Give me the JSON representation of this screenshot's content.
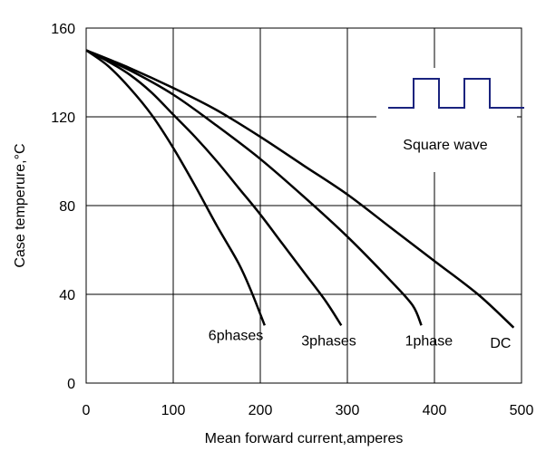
{
  "chart_data": {
    "type": "line",
    "title": "",
    "xlabel": "Mean forward  current,amperes",
    "ylabel": "Case temperure,°C",
    "xlim": [
      0,
      500
    ],
    "ylim": [
      0,
      160
    ],
    "xticks": [
      0,
      100,
      200,
      300,
      400,
      500
    ],
    "yticks": [
      0,
      40,
      80,
      120,
      160
    ],
    "grid": true,
    "series": [
      {
        "name": "6phases",
        "points": [
          [
            0,
            150
          ],
          [
            25,
            143
          ],
          [
            50,
            133
          ],
          [
            75,
            121
          ],
          [
            100,
            106
          ],
          [
            125,
            89
          ],
          [
            150,
            71
          ],
          [
            175,
            54
          ],
          [
            190,
            41
          ],
          [
            205,
            26
          ]
        ]
      },
      {
        "name": "3phases",
        "points": [
          [
            0,
            150
          ],
          [
            25,
            145
          ],
          [
            50,
            139
          ],
          [
            75,
            131
          ],
          [
            100,
            121
          ],
          [
            125,
            111
          ],
          [
            150,
            100
          ],
          [
            175,
            88
          ],
          [
            200,
            76
          ],
          [
            225,
            63
          ],
          [
            250,
            50
          ],
          [
            275,
            37
          ],
          [
            293,
            26
          ]
        ]
      },
      {
        "name": "1phase",
        "points": [
          [
            0,
            150
          ],
          [
            50,
            141
          ],
          [
            100,
            130
          ],
          [
            150,
            116
          ],
          [
            200,
            101
          ],
          [
            250,
            84
          ],
          [
            300,
            66
          ],
          [
            350,
            46
          ],
          [
            375,
            35
          ],
          [
            385,
            26
          ]
        ]
      },
      {
        "name": "DC",
        "points": [
          [
            0,
            150
          ],
          [
            50,
            142
          ],
          [
            100,
            133
          ],
          [
            150,
            123
          ],
          [
            200,
            111
          ],
          [
            250,
            98
          ],
          [
            300,
            85
          ],
          [
            350,
            70
          ],
          [
            400,
            55
          ],
          [
            450,
            40
          ],
          [
            491,
            25
          ]
        ]
      }
    ],
    "inset": {
      "label": "Square wave",
      "waveform": [
        0,
        1,
        0,
        1,
        0
      ]
    },
    "colors": {
      "curves": "#000000",
      "waveform": "#1a237e",
      "grid": "#000000"
    }
  }
}
